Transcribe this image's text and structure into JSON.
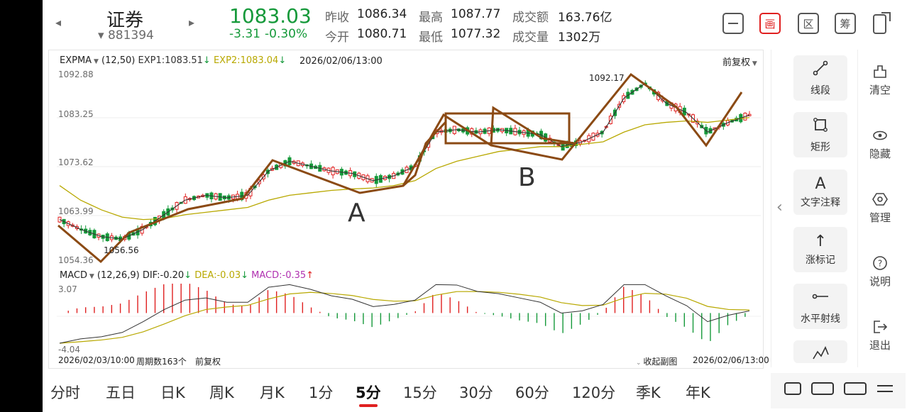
{
  "header": {
    "name": "证券",
    "code": "881394",
    "price": "1083.03",
    "change": "-3.31",
    "change_pct": "-0.30%",
    "prev_close_label": "昨收",
    "prev_close": "1086.34",
    "open_label": "今开",
    "open": "1080.71",
    "high_label": "最高",
    "high": "1087.77",
    "low_label": "最低",
    "low": "1077.32",
    "amount_label": "成交额",
    "amount": "163.76亿",
    "volume_label": "成交量",
    "volume": "1302万",
    "toolbar_draw": "画",
    "toolbar_region": "区",
    "toolbar_chip": "筹"
  },
  "main_chart": {
    "indicator": "EXPMA",
    "params": "(12,50)",
    "exp1": "EXP1:1083.51",
    "exp2": "EXP2:1083.04",
    "cursor_time": "2026/02/06/13:00",
    "adjust": "前复权",
    "y_labels": [
      "1092.88",
      "1083.25",
      "1073.62",
      "1063.99",
      "1054.36"
    ],
    "max_label": "1092.17",
    "min_label": "1056.56",
    "annotation_a": "A",
    "annotation_b": "B"
  },
  "sub_chart": {
    "indicator": "MACD",
    "params": "(12,26,9)",
    "dif": "DIF:-0.20",
    "dea": "DEA:-0.03",
    "macd": "MACD:-0.35",
    "y_top": "3.07",
    "y_bottom": "-4.04"
  },
  "footer": {
    "start_time": "2026/02/03/10:00",
    "period_count": "周期数163个",
    "adjust": "前复权",
    "collapse": "收起副图",
    "end_time": "2026/02/06/13:00"
  },
  "periods": [
    "分时",
    "五日",
    "日K",
    "周K",
    "月K",
    "1分",
    "5分",
    "15分",
    "30分",
    "60分",
    "120分",
    "季K",
    "年K"
  ],
  "active_period": "5分",
  "drawing_tools": [
    "线段",
    "矩形",
    "文字注释",
    "涨标记",
    "水平射线"
  ],
  "drawing_tool_icons": [
    "line-segment-icon",
    "rectangle-icon",
    "text-icon",
    "up-arrow-icon",
    "horizontal-ray-icon",
    "pattern-icon"
  ],
  "side_actions": [
    "清空",
    "隐藏",
    "管理",
    "说明",
    "退出"
  ],
  "side_action_icons": [
    "clear-icon",
    "eye-icon",
    "settings-icon",
    "help-icon",
    "exit-icon"
  ],
  "colors": {
    "up": "#e02020",
    "down": "#15993a",
    "exp1": "#333333",
    "exp2": "#b8a800",
    "dif": "#333333",
    "dea": "#b8a800",
    "drawing": "#8b4a14",
    "accent": "#e02020"
  },
  "chart_data": {
    "type": "candlestick",
    "ylim": [
      1054.36,
      1092.88
    ],
    "high_point": 1092.17,
    "low_point": 1056.56,
    "macd_ylim": [
      -4.04,
      3.07
    ],
    "series": [
      {
        "name": "EXP1",
        "values": [
          1062,
          1060,
          1058.5,
          1058,
          1060,
          1063,
          1066,
          1067,
          1066.5,
          1067,
          1072,
          1074,
          1073,
          1072,
          1071.5,
          1070,
          1071,
          1073,
          1080,
          1080.5,
          1080,
          1080.5,
          1080,
          1079.5,
          1077,
          1078,
          1080,
          1087,
          1090,
          1086,
          1084,
          1080,
          1082,
          1083.5
        ]
      },
      {
        "name": "EXP2",
        "values": [
          1069,
          1066,
          1064,
          1062.5,
          1062,
          1062.2,
          1063,
          1063.5,
          1064,
          1064.5,
          1066,
          1067,
          1067.5,
          1068,
          1068.3,
          1068.5,
          1069,
          1070,
          1072.5,
          1074,
          1075,
          1076,
          1076.5,
          1077,
          1077,
          1077.5,
          1078,
          1080,
          1081.5,
          1082,
          1082.3,
          1082,
          1082.5,
          1083
        ]
      }
    ]
  }
}
